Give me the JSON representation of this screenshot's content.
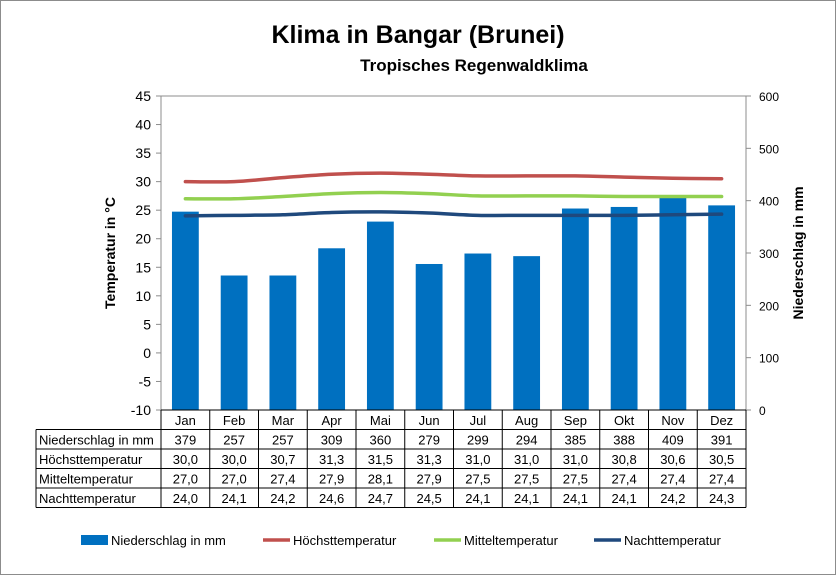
{
  "chart_data": {
    "type": "bar",
    "title": "Klima in Bangar (Brunei)",
    "subtitle": "Tropisches Regenwaldklima",
    "ylabel": "Temperatur in °C",
    "y2label": "Niederschlag in mm",
    "ylim": [
      -10,
      45
    ],
    "y2lim": [
      0,
      600
    ],
    "yticks": [
      "45",
      "40",
      "35",
      "30",
      "25",
      "20",
      "15",
      "10",
      "5",
      "0",
      "-5",
      "-10"
    ],
    "y2ticks": [
      "600",
      "500",
      "400",
      "300",
      "200",
      "100",
      "0"
    ],
    "categories": [
      "Jan",
      "Feb",
      "Mar",
      "Apr",
      "Mai",
      "Jun",
      "Jul",
      "Aug",
      "Sep",
      "Okt",
      "Nov",
      "Dez"
    ],
    "grid": false,
    "legend_position": "bottom",
    "series": [
      {
        "name": "Niederschlag in mm",
        "type": "bar",
        "axis": "right",
        "color": "#0070c0",
        "values": [
          379,
          257,
          257,
          309,
          360,
          279,
          299,
          294,
          385,
          388,
          409,
          391
        ],
        "labels": [
          "379",
          "257",
          "257",
          "309",
          "360",
          "279",
          "299",
          "294",
          "385",
          "388",
          "409",
          "391"
        ]
      },
      {
        "name": "Höchsttemperatur",
        "type": "line",
        "axis": "left",
        "color": "#c0504d",
        "values": [
          30.0,
          30.0,
          30.7,
          31.3,
          31.5,
          31.3,
          31.0,
          31.0,
          31.0,
          30.8,
          30.6,
          30.5
        ],
        "labels": [
          "30,0",
          "30,0",
          "30,7",
          "31,3",
          "31,5",
          "31,3",
          "31,0",
          "31,0",
          "31,0",
          "30,8",
          "30,6",
          "30,5"
        ]
      },
      {
        "name": "Mitteltemperatur",
        "type": "line",
        "axis": "left",
        "color": "#92d050",
        "values": [
          27.0,
          27.0,
          27.4,
          27.9,
          28.1,
          27.9,
          27.5,
          27.5,
          27.5,
          27.4,
          27.4,
          27.4
        ],
        "labels": [
          "27,0",
          "27,0",
          "27,4",
          "27,9",
          "28,1",
          "27,9",
          "27,5",
          "27,5",
          "27,5",
          "27,4",
          "27,4",
          "27,4"
        ]
      },
      {
        "name": "Nachttemperatur",
        "type": "line",
        "axis": "left",
        "color": "#1f497d",
        "values": [
          24.0,
          24.1,
          24.2,
          24.6,
          24.7,
          24.5,
          24.1,
          24.1,
          24.1,
          24.1,
          24.2,
          24.3
        ],
        "labels": [
          "24,0",
          "24,1",
          "24,2",
          "24,6",
          "24,7",
          "24,5",
          "24,1",
          "24,1",
          "24,1",
          "24,1",
          "24,2",
          "24,3"
        ]
      }
    ]
  }
}
